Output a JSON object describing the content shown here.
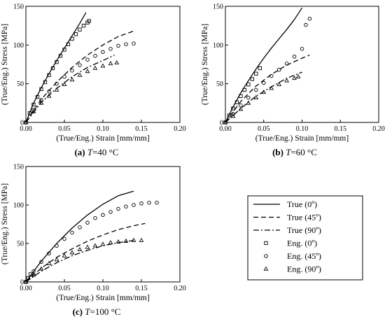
{
  "chart_data": [
    {
      "type": "line",
      "caption": {
        "letter": "(a)",
        "var": "T",
        "rest": "=40 °C"
      },
      "xlabel": "(True/Eng.) Strain [mm/mm]",
      "ylabel": "(True/Eng.) Stress [MPa]",
      "xlim": [
        0,
        0.2
      ],
      "ylim": [
        0,
        150
      ],
      "xticks": [
        "0.00",
        "0.05",
        "0.10",
        "0.15",
        "0.20"
      ],
      "yticks": [
        "0",
        "50",
        "100",
        "150"
      ],
      "grid": false,
      "series": [
        {
          "name": "True (0º)",
          "style": "solid",
          "x": [
            0,
            0.01,
            0.02,
            0.03,
            0.04,
            0.05,
            0.06,
            0.07,
            0.078
          ],
          "y": [
            0,
            25,
            45,
            63,
            80,
            96,
            112,
            128,
            142
          ]
        },
        {
          "name": "True (45º)",
          "style": "dash",
          "x": [
            0,
            0.02,
            0.04,
            0.06,
            0.08,
            0.1,
            0.12,
            0.14
          ],
          "y": [
            0,
            30,
            52,
            71,
            87,
            100,
            111,
            118
          ]
        },
        {
          "name": "True (90º)",
          "style": "dashdot",
          "x": [
            0,
            0.02,
            0.04,
            0.06,
            0.08,
            0.1,
            0.115
          ],
          "y": [
            0,
            26,
            44,
            59,
            71,
            80,
            87
          ]
        },
        {
          "name": "Eng. (0º)",
          "style": "marker",
          "marker": "square",
          "x": [
            0,
            0.005,
            0.01,
            0.015,
            0.02,
            0.025,
            0.03,
            0.035,
            0.04,
            0.045,
            0.05,
            0.055,
            0.06,
            0.065,
            0.07,
            0.075,
            0.08,
            0.082
          ],
          "y": [
            0,
            12,
            23,
            33,
            43,
            52,
            61,
            70,
            78,
            86,
            94,
            101,
            108,
            114,
            120,
            125,
            129,
            131
          ]
        },
        {
          "name": "Eng. (45º)",
          "style": "marker",
          "marker": "circle",
          "x": [
            0,
            0.01,
            0.02,
            0.03,
            0.04,
            0.05,
            0.06,
            0.07,
            0.08,
            0.09,
            0.1,
            0.11,
            0.12,
            0.13,
            0.14
          ],
          "y": [
            0,
            16,
            29,
            40,
            50,
            59,
            67,
            74,
            81,
            86,
            91,
            95,
            99,
            101,
            102
          ]
        },
        {
          "name": "Eng. (90º)",
          "style": "marker",
          "marker": "triangle",
          "x": [
            0,
            0.01,
            0.02,
            0.03,
            0.04,
            0.05,
            0.06,
            0.07,
            0.08,
            0.09,
            0.1,
            0.11,
            0.118
          ],
          "y": [
            0,
            14,
            25,
            34,
            42,
            49,
            55,
            61,
            66,
            70,
            73,
            76,
            77
          ]
        }
      ]
    },
    {
      "type": "line",
      "caption": {
        "letter": "(b)",
        "var": "T",
        "rest": "=60 °C"
      },
      "xlabel": "(True/Eng.) Strain [mm/mm]",
      "ylabel": "(True/Eng.) Stress [MPa]",
      "xlim": [
        0,
        0.2
      ],
      "ylim": [
        0,
        150
      ],
      "xticks": [
        "0.00",
        "0.05",
        "0.10",
        "0.15",
        "0.20"
      ],
      "yticks": [
        "0",
        "50",
        "100",
        "150"
      ],
      "grid": false,
      "series": [
        {
          "name": "True (0º)",
          "style": "solid",
          "x": [
            0,
            0.01,
            0.02,
            0.03,
            0.04,
            0.05,
            0.06,
            0.07,
            0.08,
            0.09,
            0.1
          ],
          "y": [
            0,
            20,
            38,
            54,
            69,
            83,
            96,
            108,
            120,
            133,
            148
          ]
        },
        {
          "name": "True (45º)",
          "style": "dash",
          "x": [
            0,
            0.02,
            0.04,
            0.06,
            0.08,
            0.1,
            0.11
          ],
          "y": [
            0,
            27,
            47,
            62,
            74,
            83,
            87
          ]
        },
        {
          "name": "True (90º)",
          "style": "dashdot",
          "x": [
            0,
            0.02,
            0.04,
            0.06,
            0.08,
            0.1
          ],
          "y": [
            0,
            18,
            34,
            46,
            57,
            65
          ]
        },
        {
          "name": "Eng. (0º)",
          "style": "marker",
          "marker": "square",
          "x": [
            0,
            0.005,
            0.01,
            0.015,
            0.02,
            0.025,
            0.03,
            0.035,
            0.04,
            0.045
          ],
          "y": [
            0,
            9,
            18,
            26,
            34,
            42,
            49,
            56,
            63,
            70
          ]
        },
        {
          "name": "Eng. (45º)",
          "style": "marker",
          "marker": "circle",
          "x": [
            0,
            0.01,
            0.02,
            0.03,
            0.04,
            0.05,
            0.06,
            0.07,
            0.08,
            0.09,
            0.1,
            0.105,
            0.11
          ],
          "y": [
            0,
            11,
            22,
            32,
            42,
            51,
            60,
            68,
            76,
            85,
            95,
            126,
            134
          ]
        },
        {
          "name": "Eng. (90º)",
          "style": "marker",
          "marker": "triangle",
          "x": [
            0,
            0.01,
            0.02,
            0.03,
            0.04,
            0.05,
            0.06,
            0.07,
            0.08,
            0.09,
            0.095
          ],
          "y": [
            0,
            8,
            17,
            25,
            32,
            39,
            44,
            49,
            54,
            57,
            59
          ]
        }
      ]
    },
    {
      "type": "line",
      "caption": {
        "letter": "(c)",
        "var": "T",
        "rest": "=100 °C"
      },
      "xlabel": "(True/Eng.) Strain [mm/mm]",
      "ylabel": "(True/Eng.) Stress [MPa]",
      "xlim": [
        0,
        0.2
      ],
      "ylim": [
        0,
        150
      ],
      "xticks": [
        "0.00",
        "0.05",
        "0.10",
        "0.15",
        "0.20"
      ],
      "yticks": [
        "0",
        "50",
        "100",
        "150"
      ],
      "grid": false,
      "series": [
        {
          "name": "True (0º)",
          "style": "solid",
          "x": [
            0,
            0.02,
            0.04,
            0.06,
            0.08,
            0.1,
            0.12,
            0.14
          ],
          "y": [
            0,
            27,
            50,
            70,
            87,
            101,
            112,
            118
          ]
        },
        {
          "name": "True (45º)",
          "style": "dash",
          "x": [
            0,
            0.02,
            0.04,
            0.06,
            0.08,
            0.1,
            0.12,
            0.14,
            0.155
          ],
          "y": [
            0,
            18,
            32,
            43,
            53,
            61,
            68,
            73,
            76
          ]
        },
        {
          "name": "True (90º)",
          "style": "dashdot",
          "x": [
            0,
            0.02,
            0.04,
            0.06,
            0.08,
            0.1,
            0.12,
            0.14
          ],
          "y": [
            0,
            14,
            25,
            34,
            41,
            47,
            51,
            54
          ]
        },
        {
          "name": "Eng. (0º)",
          "style": "marker",
          "marker": "square",
          "x": [
            0,
            0.003,
            0.006
          ],
          "y": [
            0,
            5,
            10
          ]
        },
        {
          "name": "Eng. (45º)",
          "style": "marker",
          "marker": "circle",
          "x": [
            0,
            0.01,
            0.02,
            0.03,
            0.04,
            0.05,
            0.06,
            0.07,
            0.08,
            0.09,
            0.1,
            0.11,
            0.12,
            0.13,
            0.14,
            0.15,
            0.16,
            0.17
          ],
          "y": [
            0,
            14,
            26,
            37,
            47,
            56,
            64,
            71,
            77,
            83,
            87,
            91,
            95,
            98,
            100,
            102,
            103,
            103
          ]
        },
        {
          "name": "Eng. (90º)",
          "style": "marker",
          "marker": "triangle",
          "x": [
            0,
            0.01,
            0.02,
            0.03,
            0.04,
            0.05,
            0.06,
            0.07,
            0.08,
            0.09,
            0.1,
            0.11,
            0.12,
            0.13,
            0.14,
            0.15
          ],
          "y": [
            0,
            9,
            17,
            24,
            29,
            34,
            38,
            42,
            45,
            47,
            49,
            51,
            52,
            53,
            54,
            54
          ]
        }
      ]
    }
  ],
  "legend": {
    "items": [
      {
        "label": "True (0º)",
        "style": "solid"
      },
      {
        "label": "True (45º)",
        "style": "dash"
      },
      {
        "label": "True (90º)",
        "style": "dashdot"
      },
      {
        "label": "Eng. (0º)",
        "style": "marker",
        "marker": "square"
      },
      {
        "label": "Eng. (45º)",
        "style": "marker",
        "marker": "circle"
      },
      {
        "label": "Eng. (90º)",
        "style": "marker",
        "marker": "triangle"
      }
    ]
  }
}
